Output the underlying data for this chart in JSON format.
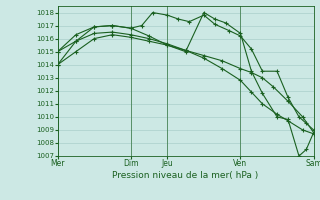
{
  "background_color": "#cce8e4",
  "grid_color": "#aacfcb",
  "line_color": "#1a6020",
  "title": "Pression niveau de la mer( hPa )",
  "ylim": [
    1007,
    1018.5
  ],
  "yticks": [
    1007,
    1008,
    1009,
    1010,
    1011,
    1012,
    1013,
    1014,
    1015,
    1016,
    1017,
    1018
  ],
  "xlim": [
    0,
    7.0
  ],
  "vlines": [
    0,
    2,
    3,
    5,
    7
  ],
  "xtick_positions": [
    0,
    2,
    3,
    5,
    7
  ],
  "xtick_labels": [
    "Mer",
    "Dim",
    "Jeu",
    "Ven",
    "Sam"
  ],
  "series": [
    {
      "x": [
        0.0,
        0.5,
        1.0,
        1.5,
        2.0,
        2.5,
        3.0,
        3.5,
        4.0,
        4.5,
        5.0,
        5.3,
        5.6,
        5.9,
        6.3,
        6.7,
        7.0
      ],
      "y": [
        1014.0,
        1015.0,
        1016.0,
        1016.3,
        1016.1,
        1015.8,
        1015.5,
        1015.1,
        1014.7,
        1014.3,
        1013.7,
        1013.4,
        1013.0,
        1012.3,
        1011.2,
        1010.0,
        1008.8
      ]
    },
    {
      "x": [
        0.0,
        0.5,
        1.0,
        1.5,
        2.0,
        2.5,
        3.0,
        3.5,
        4.0,
        4.5,
        5.0,
        5.3,
        5.6,
        6.0,
        6.3,
        6.7,
        7.0
      ],
      "y": [
        1015.0,
        1015.8,
        1016.4,
        1016.5,
        1016.3,
        1016.0,
        1015.6,
        1015.1,
        1014.5,
        1013.7,
        1012.8,
        1011.9,
        1011.0,
        1010.2,
        1009.7,
        1009.0,
        1008.7
      ]
    },
    {
      "x": [
        0.0,
        0.5,
        1.0,
        1.5,
        2.0,
        2.3,
        2.6,
        3.0,
        3.3,
        3.6,
        4.0,
        4.3,
        4.7,
        5.0,
        5.3,
        5.6,
        6.0,
        6.3,
        6.6,
        6.8,
        7.0
      ],
      "y": [
        1015.0,
        1016.3,
        1016.9,
        1017.0,
        1016.8,
        1017.0,
        1018.0,
        1017.8,
        1017.5,
        1017.3,
        1017.8,
        1017.1,
        1016.6,
        1016.2,
        1015.2,
        1013.5,
        1013.5,
        1011.5,
        1010.0,
        1009.5,
        1009.0
      ]
    },
    {
      "x": [
        0.0,
        0.5,
        1.0,
        1.5,
        2.0,
        2.5,
        3.0,
        3.5,
        4.0,
        4.3,
        4.6,
        5.0,
        5.3,
        5.6,
        6.0,
        6.3,
        6.6,
        6.8,
        7.0
      ],
      "y": [
        1014.0,
        1015.8,
        1016.9,
        1017.0,
        1016.8,
        1016.2,
        1015.5,
        1015.0,
        1018.0,
        1017.5,
        1017.2,
        1016.4,
        1013.5,
        1011.8,
        1010.0,
        1009.8,
        1007.0,
        1007.5,
        1008.8
      ]
    }
  ]
}
